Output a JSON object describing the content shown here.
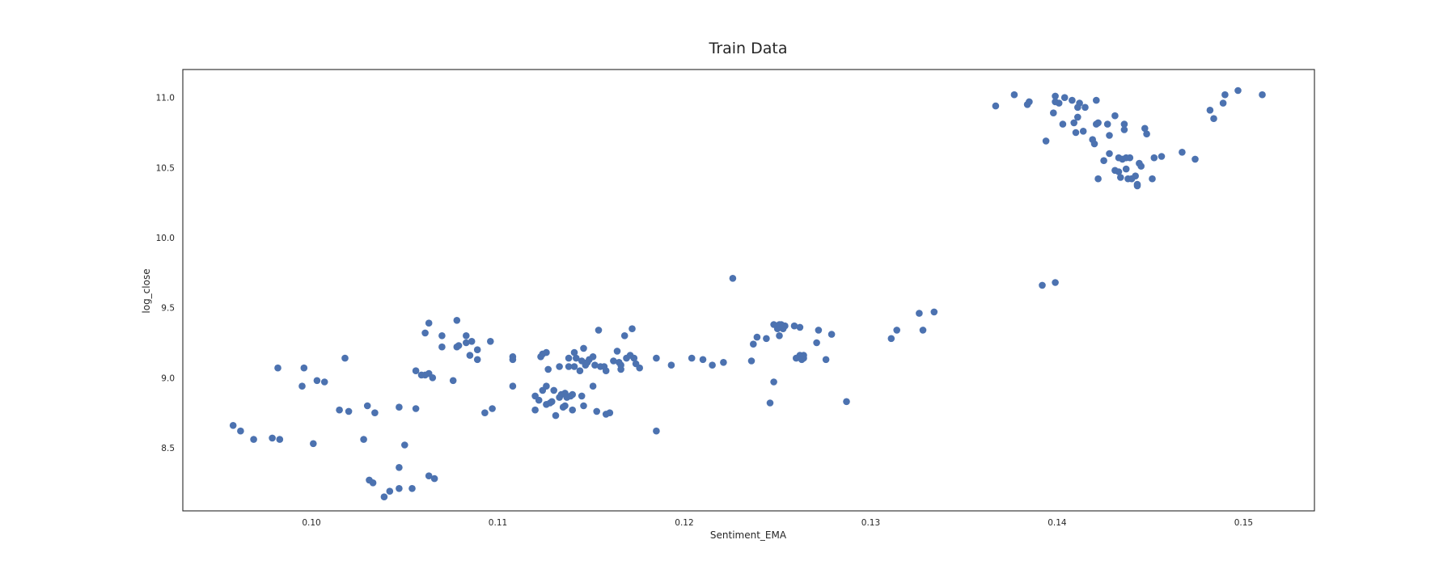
{
  "chart_data": {
    "type": "scatter",
    "title": "Train Data",
    "xlabel": "Sentiment_EMA",
    "ylabel": "log_close",
    "xlim": [
      0.0931,
      0.1538
    ],
    "ylim": [
      8.05,
      11.2
    ],
    "xticks": [
      "0.10",
      "0.11",
      "0.12",
      "0.13",
      "0.14",
      "0.15"
    ],
    "yticks": [
      "8.5",
      "9.0",
      "9.5",
      "10.0",
      "10.5",
      "11.0"
    ],
    "grid": false,
    "marker_color": "#4c72b0",
    "series": [
      {
        "points": [
          [
            0.0958,
            8.66
          ],
          [
            0.0962,
            8.62
          ],
          [
            0.0969,
            8.56
          ],
          [
            0.0979,
            8.57
          ],
          [
            0.0983,
            8.56
          ],
          [
            0.0982,
            9.07
          ],
          [
            0.0996,
            9.07
          ],
          [
            0.0995,
            8.94
          ],
          [
            0.1001,
            8.53
          ],
          [
            0.1003,
            8.98
          ],
          [
            0.1007,
            8.97
          ],
          [
            0.1018,
            9.14
          ],
          [
            0.1015,
            8.77
          ],
          [
            0.102,
            8.76
          ],
          [
            0.1028,
            8.56
          ],
          [
            0.103,
            8.8
          ],
          [
            0.1034,
            8.75
          ],
          [
            0.1031,
            8.27
          ],
          [
            0.1033,
            8.25
          ],
          [
            0.1039,
            8.15
          ],
          [
            0.1042,
            8.19
          ],
          [
            0.1047,
            8.36
          ],
          [
            0.1047,
            8.21
          ],
          [
            0.105,
            8.52
          ],
          [
            0.1047,
            8.79
          ],
          [
            0.1054,
            8.21
          ],
          [
            0.1056,
            8.78
          ],
          [
            0.1056,
            9.05
          ],
          [
            0.1059,
            9.02
          ],
          [
            0.1061,
            9.02
          ],
          [
            0.1061,
            9.32
          ],
          [
            0.1063,
            9.39
          ],
          [
            0.1063,
            9.03
          ],
          [
            0.1065,
            9.0
          ],
          [
            0.1063,
            8.3
          ],
          [
            0.1066,
            8.28
          ],
          [
            0.107,
            9.3
          ],
          [
            0.107,
            9.22
          ],
          [
            0.1076,
            8.98
          ],
          [
            0.1078,
            9.22
          ],
          [
            0.1078,
            9.41
          ],
          [
            0.1079,
            9.23
          ],
          [
            0.1083,
            9.25
          ],
          [
            0.1083,
            9.3
          ],
          [
            0.1086,
            9.26
          ],
          [
            0.1085,
            9.16
          ],
          [
            0.1089,
            9.2
          ],
          [
            0.1089,
            9.13
          ],
          [
            0.1093,
            8.75
          ],
          [
            0.1096,
            9.26
          ],
          [
            0.1097,
            8.78
          ],
          [
            0.1108,
            9.13
          ],
          [
            0.1108,
            9.15
          ],
          [
            0.1108,
            8.94
          ],
          [
            0.112,
            8.77
          ],
          [
            0.112,
            8.87
          ],
          [
            0.1122,
            8.84
          ],
          [
            0.1123,
            9.15
          ],
          [
            0.1124,
            8.91
          ],
          [
            0.1124,
            9.17
          ],
          [
            0.1126,
            9.18
          ],
          [
            0.1126,
            8.81
          ],
          [
            0.1126,
            8.94
          ],
          [
            0.1127,
            9.06
          ],
          [
            0.1128,
            8.82
          ],
          [
            0.1129,
            8.83
          ],
          [
            0.113,
            8.91
          ],
          [
            0.1131,
            8.73
          ],
          [
            0.1133,
            9.08
          ],
          [
            0.1133,
            8.86
          ],
          [
            0.1134,
            8.88
          ],
          [
            0.1135,
            8.79
          ],
          [
            0.1136,
            8.8
          ],
          [
            0.1136,
            8.89
          ],
          [
            0.1137,
            8.86
          ],
          [
            0.1138,
            9.14
          ],
          [
            0.1138,
            9.08
          ],
          [
            0.1139,
            8.87
          ],
          [
            0.114,
            8.88
          ],
          [
            0.114,
            8.77
          ],
          [
            0.1141,
            9.08
          ],
          [
            0.1141,
            9.18
          ],
          [
            0.1142,
            9.14
          ],
          [
            0.1144,
            9.05
          ],
          [
            0.1145,
            9.12
          ],
          [
            0.1145,
            8.87
          ],
          [
            0.1146,
            9.21
          ],
          [
            0.1146,
            8.8
          ],
          [
            0.1147,
            9.09
          ],
          [
            0.1148,
            9.11
          ],
          [
            0.1149,
            9.13
          ],
          [
            0.1151,
            9.15
          ],
          [
            0.1151,
            8.94
          ],
          [
            0.1152,
            9.09
          ],
          [
            0.1153,
            8.76
          ],
          [
            0.1154,
            9.34
          ],
          [
            0.1155,
            9.08
          ],
          [
            0.1157,
            9.08
          ],
          [
            0.1158,
            9.05
          ],
          [
            0.1158,
            8.74
          ],
          [
            0.116,
            8.75
          ],
          [
            0.1162,
            9.12
          ],
          [
            0.1164,
            9.19
          ],
          [
            0.1165,
            9.11
          ],
          [
            0.1166,
            9.06
          ],
          [
            0.1166,
            9.09
          ],
          [
            0.1168,
            9.3
          ],
          [
            0.1169,
            9.14
          ],
          [
            0.1171,
            9.16
          ],
          [
            0.1172,
            9.35
          ],
          [
            0.1173,
            9.14
          ],
          [
            0.1174,
            9.1
          ],
          [
            0.1176,
            9.07
          ],
          [
            0.1185,
            9.14
          ],
          [
            0.1185,
            8.62
          ],
          [
            0.1193,
            9.09
          ],
          [
            0.1204,
            9.14
          ],
          [
            0.121,
            9.13
          ],
          [
            0.1215,
            9.09
          ],
          [
            0.1221,
            9.11
          ],
          [
            0.1226,
            9.71
          ],
          [
            0.1236,
            9.12
          ],
          [
            0.1237,
            9.24
          ],
          [
            0.1239,
            9.29
          ],
          [
            0.1244,
            9.28
          ],
          [
            0.1246,
            8.82
          ],
          [
            0.1248,
            9.38
          ],
          [
            0.1248,
            8.97
          ],
          [
            0.125,
            9.35
          ],
          [
            0.1251,
            9.38
          ],
          [
            0.1251,
            9.3
          ],
          [
            0.1252,
            9.38
          ],
          [
            0.1253,
            9.35
          ],
          [
            0.1254,
            9.37
          ],
          [
            0.1259,
            9.37
          ],
          [
            0.126,
            9.14
          ],
          [
            0.1262,
            9.16
          ],
          [
            0.1262,
            9.36
          ],
          [
            0.1263,
            9.13
          ],
          [
            0.1264,
            9.14
          ],
          [
            0.1264,
            9.16
          ],
          [
            0.1271,
            9.25
          ],
          [
            0.1272,
            9.34
          ],
          [
            0.1276,
            9.13
          ],
          [
            0.1279,
            9.31
          ],
          [
            0.1287,
            8.83
          ],
          [
            0.1311,
            9.28
          ],
          [
            0.1314,
            9.34
          ],
          [
            0.1326,
            9.46
          ],
          [
            0.1328,
            9.34
          ],
          [
            0.1334,
            9.47
          ],
          [
            0.1367,
            10.94
          ],
          [
            0.1377,
            11.02
          ],
          [
            0.1384,
            10.95
          ],
          [
            0.1385,
            10.97
          ],
          [
            0.1392,
            9.66
          ],
          [
            0.1394,
            10.69
          ],
          [
            0.1398,
            10.89
          ],
          [
            0.1399,
            11.01
          ],
          [
            0.1399,
            9.68
          ],
          [
            0.1399,
            10.97
          ],
          [
            0.1401,
            10.96
          ],
          [
            0.1403,
            10.81
          ],
          [
            0.1404,
            11.0
          ],
          [
            0.1408,
            10.98
          ],
          [
            0.1409,
            10.82
          ],
          [
            0.141,
            10.75
          ],
          [
            0.1411,
            10.86
          ],
          [
            0.1411,
            10.93
          ],
          [
            0.1412,
            10.96
          ],
          [
            0.1414,
            10.76
          ],
          [
            0.1415,
            10.93
          ],
          [
            0.1419,
            10.7
          ],
          [
            0.142,
            10.67
          ],
          [
            0.1421,
            10.81
          ],
          [
            0.1421,
            10.98
          ],
          [
            0.1422,
            10.82
          ],
          [
            0.1422,
            10.42
          ],
          [
            0.1425,
            10.55
          ],
          [
            0.1427,
            10.81
          ],
          [
            0.1428,
            10.73
          ],
          [
            0.1428,
            10.6
          ],
          [
            0.1431,
            10.87
          ],
          [
            0.1431,
            10.48
          ],
          [
            0.1433,
            10.57
          ],
          [
            0.1433,
            10.47
          ],
          [
            0.1434,
            10.43
          ],
          [
            0.1435,
            10.56
          ],
          [
            0.1436,
            10.81
          ],
          [
            0.1436,
            10.77
          ],
          [
            0.1437,
            10.57
          ],
          [
            0.1437,
            10.49
          ],
          [
            0.1438,
            10.42
          ],
          [
            0.1439,
            10.57
          ],
          [
            0.144,
            10.42
          ],
          [
            0.1442,
            10.44
          ],
          [
            0.1443,
            10.37
          ],
          [
            0.1443,
            10.38
          ],
          [
            0.1444,
            10.53
          ],
          [
            0.1445,
            10.51
          ],
          [
            0.1447,
            10.78
          ],
          [
            0.1448,
            10.74
          ],
          [
            0.1451,
            10.42
          ],
          [
            0.1452,
            10.57
          ],
          [
            0.1456,
            10.58
          ],
          [
            0.1467,
            10.61
          ],
          [
            0.1474,
            10.56
          ],
          [
            0.1482,
            10.91
          ],
          [
            0.1484,
            10.85
          ],
          [
            0.1489,
            10.96
          ],
          [
            0.149,
            11.02
          ],
          [
            0.1497,
            11.05
          ],
          [
            0.151,
            11.02
          ]
        ]
      }
    ]
  }
}
